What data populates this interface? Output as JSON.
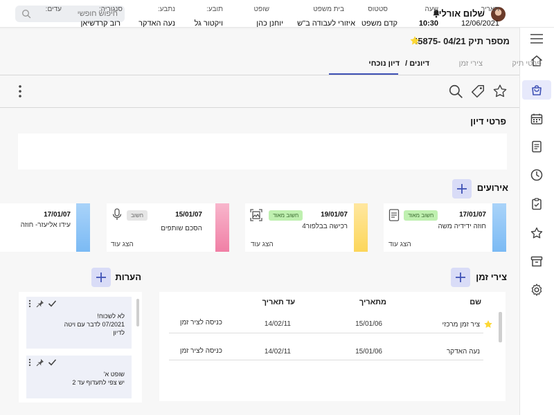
{
  "header": {
    "user_name": "שלום אורלי",
    "search_placeholder": "חיפוש חופשי"
  },
  "case": {
    "title": "מספר תיק 04/21 -45875"
  },
  "tabs": {
    "case_details": "פרטי תיק",
    "time_points": "צירי זמן",
    "hearings": "דיונים /",
    "current_hearing": "דיון נוכחי"
  },
  "hearing_details": {
    "title": "פרטי דיון",
    "headers": {
      "date": "תאריך",
      "time": "שעה",
      "status": "סטטוס",
      "court": "בית משפט",
      "judge": "שופט",
      "plaintiff": "תובע:",
      "defendant": "נתבע:",
      "advocate": "סנגוריה:",
      "witnesses": "עדים:"
    },
    "values": {
      "date": "12/06/2021",
      "time": "10:30",
      "status": "קדם משפט",
      "court": "איזורי לעבודה ב\"ש",
      "judge": "יוחנן כהן",
      "plaintiff": "ויקטור גל",
      "defendant": "נעה האדקר",
      "advocate": "רוב קרדשיאן"
    }
  },
  "events": {
    "title": "אירועים",
    "show_more": "הצג עוד",
    "items": [
      {
        "date": "17/01/07",
        "title": "חוזה ידידיה משה",
        "badge": "חשוב מאוד",
        "color": "#90caf9"
      },
      {
        "date": "19/01/07",
        "title": "רכישה בבלפור4",
        "badge": "חשוב מאוד",
        "color": "#fde38a"
      },
      {
        "date": "15/01/07",
        "title": "הסכם שותפים",
        "badge": "חשוב",
        "color": "#f48fb1"
      },
      {
        "date": "17/01/07",
        "title": "עידו אליעזר- חוזה",
        "badge": "",
        "color": "#90caf9"
      }
    ]
  },
  "time_axes": {
    "title": "צירי זמן",
    "columns": {
      "name": "שם",
      "from": "מתאריך",
      "to": "עד תאריך"
    },
    "rows": [
      {
        "name": "ציר זמן מרכזי",
        "from": "15/01/06",
        "to": "14/02/11",
        "action": "כניסה לציר זמן"
      },
      {
        "name": "נעה האדקר",
        "from": "15/01/06",
        "to": "14/02/11",
        "action": "כניסה לציר זמן"
      }
    ]
  },
  "notes": {
    "title": "הערות",
    "items": [
      {
        "line1": "לא לשכוח!",
        "line2": "07/2021 לדבר עם ויטה",
        "line3": "לדיון"
      },
      {
        "line1": "שופט א'",
        "line2": "יש צפי לתעדוף עד 2",
        "line3": ""
      }
    ]
  },
  "colors": {
    "accent": "#3f51b5",
    "add_button": "#d9dcf7",
    "badge_green": "#bff0b0",
    "star": "#fdd835"
  }
}
